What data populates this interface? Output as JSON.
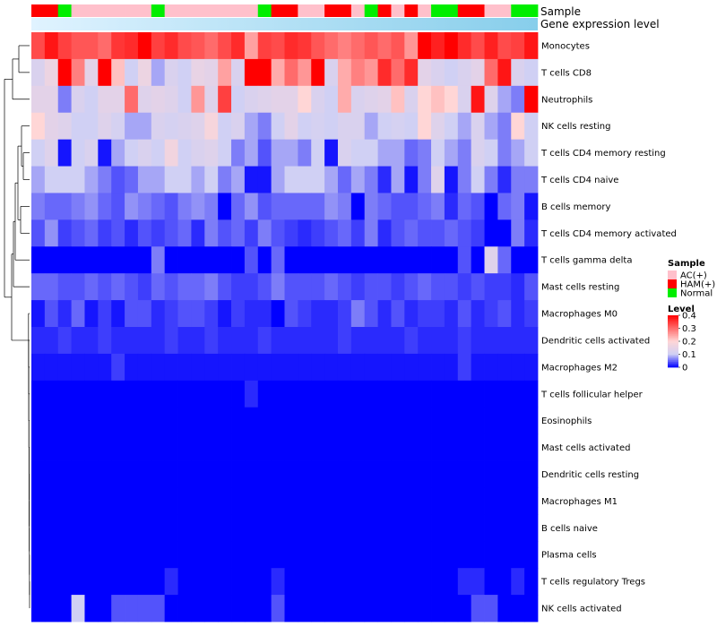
{
  "chart_data": {
    "type": "heatmap",
    "title": "",
    "annotation_labels": {
      "sample": "Sample",
      "expression": "Gene expression level"
    },
    "sample_annotation": [
      "HAM(+)",
      "HAM(+)",
      "Normal",
      "AC(+)",
      "AC(+)",
      "AC(+)",
      "AC(+)",
      "AC(+)",
      "AC(+)",
      "Normal",
      "AC(+)",
      "AC(+)",
      "AC(+)",
      "AC(+)",
      "AC(+)",
      "AC(+)",
      "AC(+)",
      "Normal",
      "HAM(+)",
      "HAM(+)",
      "AC(+)",
      "AC(+)",
      "HAM(+)",
      "HAM(+)",
      "AC(+)",
      "Normal",
      "HAM(+)",
      "AC(+)",
      "HAM(+)",
      "AC(+)",
      "Normal",
      "Normal",
      "HAM(+)",
      "HAM(+)",
      "AC(+)",
      "AC(+)",
      "Normal",
      "Normal"
    ],
    "sample_colors": {
      "AC(+)": "#ffc0cb",
      "HAM(+)": "#ff0000",
      "Normal": "#00ee00"
    },
    "expression_bar_colors": [
      "#e0f3ff",
      "#87ceeb"
    ],
    "rows": [
      "Monocytes",
      "T cells CD8",
      "Neutrophils",
      "NK cells resting",
      "T cells CD4 memory resting",
      "T cells CD4 naive",
      "B cells memory",
      "T cells CD4 memory activated",
      "T cells gamma delta",
      "Mast cells resting",
      "Macrophages M0",
      "Dendritic cells activated",
      "Macrophages M2",
      "T cells follicular helper",
      "Eosinophils",
      "Mast cells activated",
      "Dendritic cells resting",
      "Macrophages M1",
      "B cells naive",
      "Plasma cells",
      "T cells regulatory  Tregs",
      "NK cells activated"
    ],
    "values": [
      [
        0.33,
        0.38,
        0.34,
        0.32,
        0.32,
        0.3,
        0.35,
        0.36,
        0.4,
        0.34,
        0.36,
        0.33,
        0.32,
        0.3,
        0.33,
        0.36,
        0.25,
        0.34,
        0.33,
        0.36,
        0.35,
        0.32,
        0.3,
        0.28,
        0.3,
        0.32,
        0.3,
        0.32,
        0.26,
        0.4,
        0.37,
        0.4,
        0.36,
        0.33,
        0.37,
        0.33,
        0.34,
        0.38
      ],
      [
        0.12,
        0.16,
        0.4,
        0.28,
        0.14,
        0.4,
        0.22,
        0.1,
        0.16,
        0.08,
        0.12,
        0.1,
        0.15,
        0.14,
        0.25,
        0.12,
        0.4,
        0.4,
        0.24,
        0.3,
        0.26,
        0.4,
        0.12,
        0.24,
        0.28,
        0.26,
        0.36,
        0.3,
        0.36,
        0.14,
        0.12,
        0.1,
        0.12,
        0.14,
        0.3,
        0.38,
        0.12,
        0.1
      ],
      [
        0.14,
        0.14,
        0.06,
        0.12,
        0.1,
        0.14,
        0.14,
        0.3,
        0.13,
        0.14,
        0.13,
        0.1,
        0.26,
        0.13,
        0.34,
        0.1,
        0.12,
        0.13,
        0.14,
        0.14,
        0.2,
        0.12,
        0.1,
        0.24,
        0.12,
        0.13,
        0.14,
        0.22,
        0.12,
        0.2,
        0.22,
        0.2,
        0.12,
        0.38,
        0.13,
        0.08,
        0.06,
        0.4
      ],
      [
        0.2,
        0.14,
        0.13,
        0.1,
        0.1,
        0.13,
        0.11,
        0.08,
        0.08,
        0.12,
        0.11,
        0.12,
        0.13,
        0.18,
        0.1,
        0.12,
        0.08,
        0.06,
        0.1,
        0.14,
        0.1,
        0.11,
        0.1,
        0.12,
        0.12,
        0.08,
        0.1,
        0.11,
        0.1,
        0.2,
        0.13,
        0.1,
        0.08,
        0.12,
        0.08,
        0.06,
        0.2,
        0.1
      ],
      [
        0.1,
        0.13,
        0.01,
        0.1,
        0.12,
        0.01,
        0.08,
        0.1,
        0.12,
        0.1,
        0.17,
        0.1,
        0.12,
        0.13,
        0.1,
        0.06,
        0.08,
        0.04,
        0.08,
        0.08,
        0.06,
        0.1,
        0.01,
        0.12,
        0.1,
        0.1,
        0.08,
        0.08,
        0.05,
        0.06,
        0.1,
        0.08,
        0.06,
        0.12,
        0.1,
        0.06,
        0.08,
        0.1
      ],
      [
        0.08,
        0.1,
        0.1,
        0.1,
        0.08,
        0.06,
        0.04,
        0.05,
        0.08,
        0.08,
        0.1,
        0.1,
        0.08,
        0.1,
        0.06,
        0.08,
        0.01,
        0.01,
        0.08,
        0.1,
        0.1,
        0.1,
        0.08,
        0.05,
        0.08,
        0.06,
        0.02,
        0.08,
        0.01,
        0.06,
        0.13,
        0.01,
        0.06,
        0.1,
        0.06,
        0.02,
        0.06,
        0.06
      ],
      [
        0.06,
        0.05,
        0.05,
        0.06,
        0.07,
        0.05,
        0.04,
        0.07,
        0.06,
        0.05,
        0.04,
        0.06,
        0.07,
        0.06,
        0.0,
        0.05,
        0.07,
        0.04,
        0.05,
        0.05,
        0.05,
        0.05,
        0.07,
        0.06,
        0.0,
        0.06,
        0.05,
        0.04,
        0.04,
        0.05,
        0.06,
        0.02,
        0.05,
        0.04,
        0.0,
        0.05,
        0.06,
        0.01
      ],
      [
        0.04,
        0.07,
        0.03,
        0.04,
        0.05,
        0.03,
        0.04,
        0.02,
        0.04,
        0.03,
        0.04,
        0.05,
        0.02,
        0.06,
        0.04,
        0.05,
        0.03,
        0.06,
        0.04,
        0.03,
        0.02,
        0.03,
        0.04,
        0.05,
        0.03,
        0.06,
        0.02,
        0.04,
        0.05,
        0.04,
        0.04,
        0.05,
        0.04,
        0.03,
        0.0,
        0.0,
        0.06,
        0.02
      ],
      [
        0.0,
        0.0,
        0.0,
        0.0,
        0.0,
        0.0,
        0.0,
        0.0,
        0.0,
        0.06,
        0.0,
        0.0,
        0.0,
        0.0,
        0.0,
        0.0,
        0.04,
        0.0,
        0.05,
        0.0,
        0.0,
        0.0,
        0.0,
        0.0,
        0.0,
        0.0,
        0.0,
        0.0,
        0.0,
        0.0,
        0.0,
        0.0,
        0.04,
        0.0,
        0.13,
        0.05,
        0.0,
        0.0
      ],
      [
        0.05,
        0.05,
        0.04,
        0.04,
        0.05,
        0.04,
        0.05,
        0.04,
        0.03,
        0.05,
        0.04,
        0.05,
        0.05,
        0.06,
        0.04,
        0.03,
        0.03,
        0.04,
        0.06,
        0.04,
        0.04,
        0.04,
        0.05,
        0.04,
        0.03,
        0.04,
        0.04,
        0.03,
        0.04,
        0.05,
        0.04,
        0.04,
        0.03,
        0.04,
        0.03,
        0.03,
        0.02,
        0.04
      ],
      [
        0.01,
        0.04,
        0.02,
        0.05,
        0.01,
        0.03,
        0.01,
        0.04,
        0.04,
        0.02,
        0.03,
        0.04,
        0.04,
        0.03,
        0.01,
        0.03,
        0.02,
        0.02,
        0.0,
        0.04,
        0.03,
        0.02,
        0.02,
        0.03,
        0.06,
        0.04,
        0.02,
        0.04,
        0.02,
        0.03,
        0.03,
        0.02,
        0.04,
        0.02,
        0.03,
        0.04,
        0.02,
        0.03
      ],
      [
        0.02,
        0.02,
        0.03,
        0.02,
        0.02,
        0.03,
        0.02,
        0.02,
        0.02,
        0.02,
        0.03,
        0.02,
        0.02,
        0.03,
        0.02,
        0.02,
        0.02,
        0.03,
        0.02,
        0.02,
        0.02,
        0.02,
        0.02,
        0.03,
        0.02,
        0.02,
        0.02,
        0.02,
        0.03,
        0.02,
        0.02,
        0.02,
        0.03,
        0.02,
        0.02,
        0.02,
        0.02,
        0.02
      ],
      [
        0.01,
        0.01,
        0.01,
        0.01,
        0.01,
        0.01,
        0.03,
        0.01,
        0.01,
        0.01,
        0.01,
        0.01,
        0.01,
        0.01,
        0.01,
        0.01,
        0.01,
        0.01,
        0.01,
        0.01,
        0.01,
        0.01,
        0.01,
        0.01,
        0.01,
        0.01,
        0.01,
        0.01,
        0.01,
        0.01,
        0.01,
        0.01,
        0.03,
        0.01,
        0.01,
        0.01,
        0.01,
        0.01
      ],
      [
        0.0,
        0.0,
        0.0,
        0.0,
        0.0,
        0.0,
        0.0,
        0.0,
        0.0,
        0.0,
        0.0,
        0.0,
        0.0,
        0.0,
        0.0,
        0.0,
        0.02,
        0.0,
        0.0,
        0.0,
        0.0,
        0.0,
        0.0,
        0.0,
        0.0,
        0.0,
        0.0,
        0.0,
        0.0,
        0.0,
        0.0,
        0.0,
        0.0,
        0.0,
        0.0,
        0.0,
        0.0,
        0.0
      ],
      [
        0.0,
        0.0,
        0.0,
        0.0,
        0.0,
        0.0,
        0.0,
        0.0,
        0.0,
        0.0,
        0.0,
        0.0,
        0.0,
        0.0,
        0.0,
        0.0,
        0.0,
        0.0,
        0.0,
        0.0,
        0.0,
        0.0,
        0.0,
        0.0,
        0.0,
        0.0,
        0.0,
        0.0,
        0.0,
        0.0,
        0.0,
        0.0,
        0.0,
        0.0,
        0.0,
        0.0,
        0.0,
        0.0
      ],
      [
        0.0,
        0.0,
        0.0,
        0.0,
        0.0,
        0.0,
        0.0,
        0.0,
        0.0,
        0.0,
        0.0,
        0.0,
        0.0,
        0.0,
        0.0,
        0.0,
        0.0,
        0.0,
        0.0,
        0.0,
        0.0,
        0.0,
        0.0,
        0.0,
        0.0,
        0.0,
        0.0,
        0.0,
        0.0,
        0.0,
        0.0,
        0.0,
        0.0,
        0.0,
        0.0,
        0.0,
        0.0,
        0.0
      ],
      [
        0.0,
        0.0,
        0.0,
        0.0,
        0.0,
        0.0,
        0.0,
        0.0,
        0.0,
        0.0,
        0.0,
        0.0,
        0.0,
        0.0,
        0.0,
        0.0,
        0.0,
        0.0,
        0.0,
        0.0,
        0.0,
        0.0,
        0.0,
        0.0,
        0.0,
        0.0,
        0.0,
        0.0,
        0.0,
        0.0,
        0.0,
        0.0,
        0.0,
        0.0,
        0.0,
        0.0,
        0.0,
        0.0
      ],
      [
        0.0,
        0.0,
        0.0,
        0.0,
        0.0,
        0.0,
        0.0,
        0.0,
        0.0,
        0.0,
        0.0,
        0.0,
        0.0,
        0.0,
        0.0,
        0.0,
        0.0,
        0.0,
        0.0,
        0.0,
        0.0,
        0.0,
        0.0,
        0.0,
        0.0,
        0.0,
        0.0,
        0.0,
        0.0,
        0.0,
        0.0,
        0.0,
        0.0,
        0.0,
        0.0,
        0.0,
        0.0,
        0.0
      ],
      [
        0.0,
        0.0,
        0.0,
        0.0,
        0.0,
        0.0,
        0.0,
        0.0,
        0.0,
        0.0,
        0.0,
        0.0,
        0.0,
        0.0,
        0.0,
        0.0,
        0.0,
        0.0,
        0.0,
        0.0,
        0.0,
        0.0,
        0.0,
        0.0,
        0.0,
        0.0,
        0.0,
        0.0,
        0.0,
        0.0,
        0.0,
        0.0,
        0.0,
        0.0,
        0.0,
        0.0,
        0.0,
        0.0
      ],
      [
        0.0,
        0.0,
        0.0,
        0.0,
        0.0,
        0.0,
        0.0,
        0.0,
        0.0,
        0.0,
        0.0,
        0.0,
        0.0,
        0.0,
        0.0,
        0.0,
        0.0,
        0.0,
        0.0,
        0.0,
        0.0,
        0.0,
        0.0,
        0.0,
        0.0,
        0.0,
        0.0,
        0.0,
        0.0,
        0.0,
        0.0,
        0.0,
        0.0,
        0.0,
        0.0,
        0.0,
        0.0,
        0.0
      ],
      [
        0.0,
        0.0,
        0.0,
        0.0,
        0.0,
        0.0,
        0.0,
        0.0,
        0.0,
        0.0,
        0.02,
        0.0,
        0.0,
        0.0,
        0.0,
        0.0,
        0.0,
        0.0,
        0.02,
        0.0,
        0.0,
        0.0,
        0.0,
        0.0,
        0.0,
        0.0,
        0.0,
        0.0,
        0.0,
        0.0,
        0.0,
        0.0,
        0.02,
        0.02,
        0.0,
        0.0,
        0.02,
        0.0
      ],
      [
        0.0,
        0.0,
        0.0,
        0.1,
        0.0,
        0.0,
        0.04,
        0.04,
        0.04,
        0.04,
        0.0,
        0.0,
        0.0,
        0.0,
        0.0,
        0.0,
        0.0,
        0.0,
        0.04,
        0.0,
        0.0,
        0.0,
        0.0,
        0.0,
        0.0,
        0.0,
        0.0,
        0.0,
        0.0,
        0.0,
        0.0,
        0.0,
        0.0,
        0.04,
        0.04,
        0.0,
        0.0,
        0.0
      ]
    ],
    "color_scale": {
      "stops": [
        0,
        0.1,
        0.2,
        0.4
      ],
      "colors": [
        "#0000ff",
        "#d0d0f4",
        "#ffd6d6",
        "#ff0000"
      ]
    },
    "legend": {
      "sample_title": "Sample",
      "sample_entries": [
        "AC(+)",
        "HAM(+)",
        "Normal"
      ],
      "level_title": "Level",
      "level_ticks": [
        "0.4",
        "0.3",
        "0.2",
        "0.1",
        "0"
      ],
      "level_tick_values": [
        0.4,
        0.3,
        0.2,
        0.1,
        0
      ]
    }
  }
}
